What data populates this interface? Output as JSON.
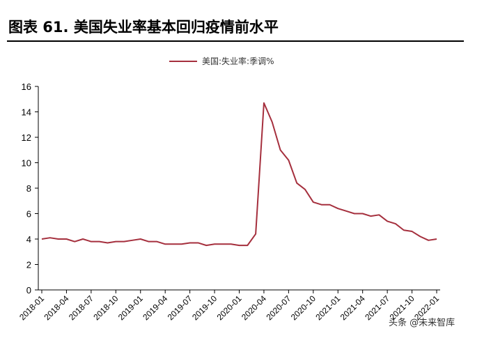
{
  "figure_title": "图表 61. 美国失业率基本回归疫情前水平",
  "watermark": "头条 @未来智库",
  "colors": {
    "series": "#a52f3d",
    "rule": "#000000",
    "axis": "#000000"
  },
  "chart_data": {
    "type": "line",
    "title": "",
    "xlabel": "",
    "ylabel": "",
    "ylim": [
      0,
      16
    ],
    "yticks": [
      0,
      2,
      4,
      6,
      8,
      10,
      12,
      14,
      16
    ],
    "grid": false,
    "legend_position": "top-center",
    "x": [
      "2018-01",
      "2018-02",
      "2018-03",
      "2018-04",
      "2018-05",
      "2018-06",
      "2018-07",
      "2018-08",
      "2018-09",
      "2018-10",
      "2018-11",
      "2018-12",
      "2019-01",
      "2019-02",
      "2019-03",
      "2019-04",
      "2019-05",
      "2019-06",
      "2019-07",
      "2019-08",
      "2019-09",
      "2019-10",
      "2019-11",
      "2019-12",
      "2020-01",
      "2020-02",
      "2020-03",
      "2020-04",
      "2020-05",
      "2020-06",
      "2020-07",
      "2020-08",
      "2020-09",
      "2020-10",
      "2020-11",
      "2020-12",
      "2021-01",
      "2021-02",
      "2021-03",
      "2021-04",
      "2021-05",
      "2021-06",
      "2021-07",
      "2021-08",
      "2021-09",
      "2021-10",
      "2021-11",
      "2021-12",
      "2022-01"
    ],
    "xticks": [
      "2018-01",
      "2018-04",
      "2018-07",
      "2018-10",
      "2019-01",
      "2019-04",
      "2019-07",
      "2019-10",
      "2020-01",
      "2020-04",
      "2020-07",
      "2020-10",
      "2021-01",
      "2021-04",
      "2021-07",
      "2021-10",
      "2022-01"
    ],
    "series": [
      {
        "name": "美国:失业率:季调%",
        "values": [
          4.0,
          4.1,
          4.0,
          4.0,
          3.8,
          4.0,
          3.8,
          3.8,
          3.7,
          3.8,
          3.8,
          3.9,
          4.0,
          3.8,
          3.8,
          3.6,
          3.6,
          3.6,
          3.7,
          3.7,
          3.5,
          3.6,
          3.6,
          3.6,
          3.5,
          3.5,
          4.4,
          14.7,
          13.2,
          11.0,
          10.2,
          8.4,
          7.9,
          6.9,
          6.7,
          6.7,
          6.4,
          6.2,
          6.0,
          6.0,
          5.8,
          5.9,
          5.4,
          5.2,
          4.7,
          4.6,
          4.2,
          3.9,
          4.0
        ]
      }
    ]
  }
}
